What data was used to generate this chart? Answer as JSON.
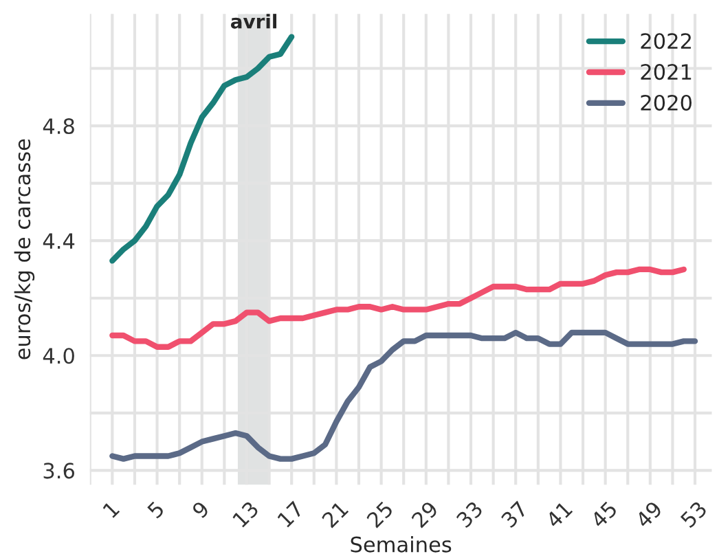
{
  "chart_data": {
    "type": "line",
    "xlabel": "Semaines",
    "ylabel": "euros/kg de carcasse",
    "x": [
      1,
      2,
      3,
      4,
      5,
      6,
      7,
      8,
      9,
      10,
      11,
      12,
      13,
      14,
      15,
      16,
      17,
      18,
      19,
      20,
      21,
      22,
      23,
      24,
      25,
      26,
      27,
      28,
      29,
      30,
      31,
      32,
      33,
      34,
      35,
      36,
      37,
      38,
      39,
      40,
      41,
      42,
      43,
      44,
      45,
      46,
      47,
      48,
      49,
      50,
      51,
      52,
      53
    ],
    "series": [
      {
        "name": "2022",
        "color": "#1a7f7a",
        "values": [
          4.33,
          4.37,
          4.4,
          4.45,
          4.52,
          4.56,
          4.63,
          4.74,
          4.83,
          4.88,
          4.94,
          4.96,
          4.97,
          5.0,
          5.04,
          5.05,
          5.11,
          null,
          null,
          null,
          null,
          null,
          null,
          null,
          null,
          null,
          null,
          null,
          null,
          null,
          null,
          null,
          null,
          null,
          null,
          null,
          null,
          null,
          null,
          null,
          null,
          null,
          null,
          null,
          null,
          null,
          null,
          null,
          null,
          null,
          null,
          null,
          null
        ]
      },
      {
        "name": "2021",
        "color": "#f0506e",
        "values": [
          4.07,
          4.07,
          4.05,
          4.05,
          4.03,
          4.03,
          4.05,
          4.05,
          4.08,
          4.11,
          4.11,
          4.12,
          4.15,
          4.15,
          4.12,
          4.13,
          4.13,
          4.13,
          4.14,
          4.15,
          4.16,
          4.16,
          4.17,
          4.17,
          4.16,
          4.17,
          4.16,
          4.16,
          4.16,
          4.17,
          4.18,
          4.18,
          4.2,
          4.22,
          4.24,
          4.24,
          4.24,
          4.23,
          4.23,
          4.23,
          4.25,
          4.25,
          4.25,
          4.26,
          4.28,
          4.29,
          4.29,
          4.3,
          4.3,
          4.29,
          4.29,
          4.3,
          null
        ]
      },
      {
        "name": "2020",
        "color": "#5b6a87",
        "values": [
          3.65,
          3.64,
          3.65,
          3.65,
          3.65,
          3.65,
          3.66,
          3.68,
          3.7,
          3.71,
          3.72,
          3.73,
          3.72,
          3.68,
          3.65,
          3.64,
          3.64,
          3.65,
          3.66,
          3.69,
          3.77,
          3.84,
          3.89,
          3.96,
          3.98,
          4.02,
          4.05,
          4.05,
          4.07,
          4.07,
          4.07,
          4.07,
          4.07,
          4.06,
          4.06,
          4.06,
          4.08,
          4.06,
          4.06,
          4.04,
          4.04,
          4.08,
          4.08,
          4.08,
          4.08,
          4.06,
          4.04,
          4.04,
          4.04,
          4.04,
          4.04,
          4.05,
          4.05
        ]
      }
    ],
    "xlim": [
      -1,
      54.5
    ],
    "xticks": [
      {
        "value": -1,
        "label": null
      },
      1,
      {
        "value": 3,
        "label": null
      },
      5,
      {
        "value": 7,
        "label": null
      },
      9,
      {
        "value": 11,
        "label": null
      },
      13,
      {
        "value": 15,
        "label": null
      },
      17,
      {
        "value": 19,
        "label": null
      },
      21,
      {
        "value": 23,
        "label": null
      },
      25,
      {
        "value": 27,
        "label": null
      },
      29,
      {
        "value": 31,
        "label": null
      },
      33,
      {
        "value": 35,
        "label": null
      },
      37,
      {
        "value": 39,
        "label": null
      },
      41,
      {
        "value": 43,
        "label": null
      },
      45,
      {
        "value": 47,
        "label": null
      },
      49,
      {
        "value": 51,
        "label": null
      },
      53
    ],
    "ylim": [
      3.55,
      5.19
    ],
    "yticks": [
      3.6,
      {
        "value": 3.8,
        "label": null
      },
      {
        "value": 4.0,
        "label": "4.0"
      },
      {
        "value": 4.2,
        "label": null
      },
      4.4,
      {
        "value": 4.6,
        "label": null
      },
      4.8,
      {
        "value": 5.0,
        "label": null
      }
    ],
    "bands": [
      {
        "axis": "x",
        "from": 12.2,
        "to": 15.1,
        "label": "avril",
        "color": "#e0e2e2"
      }
    ],
    "grid": true,
    "legend": "top right",
    "line_style": "solid",
    "marker": "none"
  }
}
